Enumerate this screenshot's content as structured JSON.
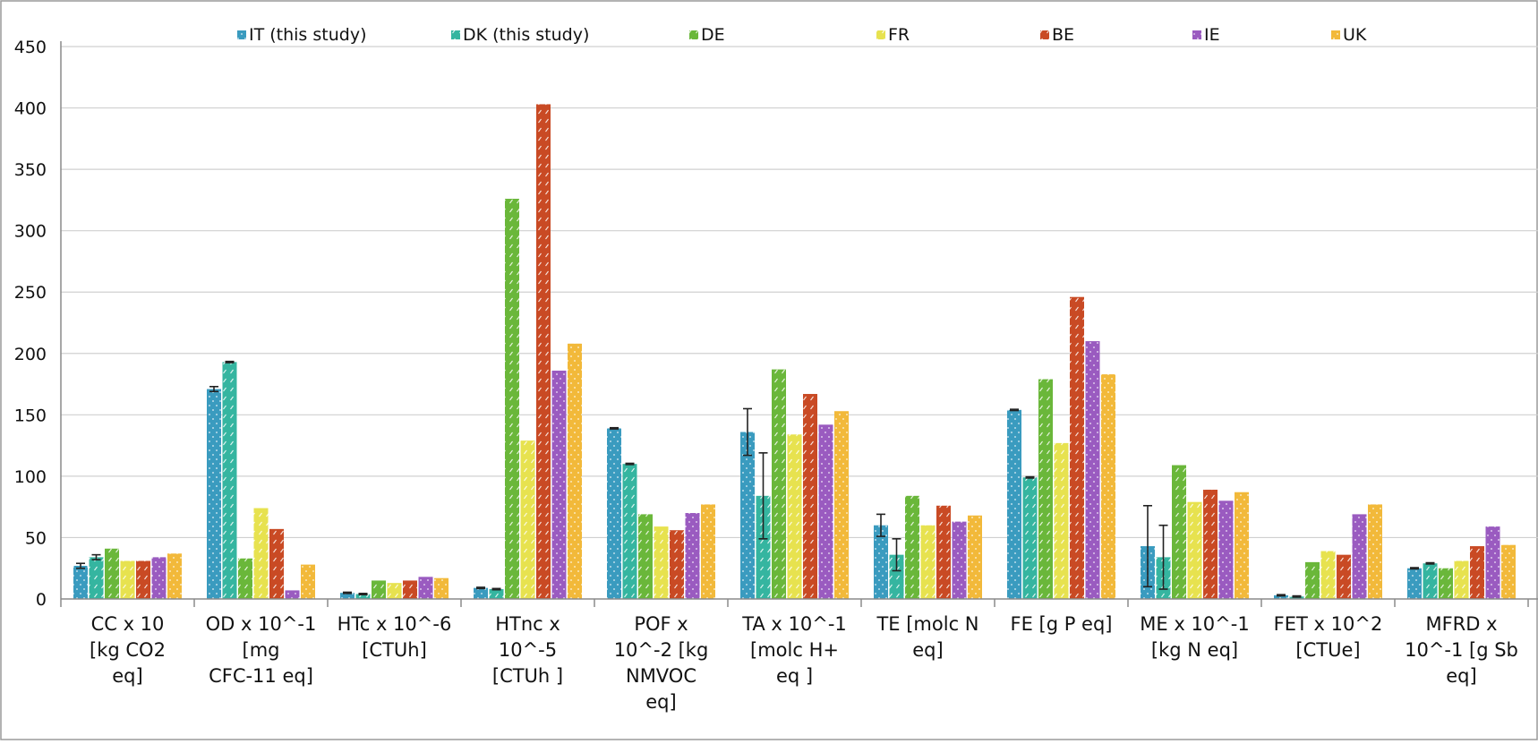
{
  "chart_data": {
    "type": "bar",
    "title": "",
    "xlabel": "",
    "ylabel": "",
    "ylim": [
      0,
      450
    ],
    "yticks": [
      0,
      50,
      100,
      150,
      200,
      250,
      300,
      350,
      400,
      450
    ],
    "grid": "horizontal",
    "legend_position": "top",
    "category_labels": [
      [
        "CC  x 10",
        "[kg CO2",
        "eq]"
      ],
      [
        "OD x 10^-1",
        "[mg",
        "CFC-11 eq]"
      ],
      [
        "HTc x 10^-6",
        "[CTUh]"
      ],
      [
        "HTnc x",
        "10^-5",
        "[CTUh ]"
      ],
      [
        "POF x",
        "10^-2 [kg",
        "NMVOC",
        "eq]"
      ],
      [
        "TA x 10^-1",
        "[molc H+",
        "eq ]"
      ],
      [
        "TE [molc N",
        "eq]"
      ],
      [
        "FE [g   P eq]"
      ],
      [
        "ME x 10^-1",
        "[kg N eq]"
      ],
      [
        "FET x 10^2",
        "[CTUe]"
      ],
      [
        "MFRD x",
        "10^-1 [g Sb",
        "eq]"
      ]
    ],
    "series": [
      {
        "name": "IT (this study)",
        "color": "#3a9bbf",
        "pattern": "dots",
        "values": [
          27,
          171,
          5,
          9,
          139,
          136,
          60,
          154,
          43,
          3,
          25
        ],
        "errors": [
          2,
          2,
          0.5,
          0.5,
          0.5,
          19,
          9,
          0.5,
          33,
          0.5,
          0.5
        ]
      },
      {
        "name": "DK (this study)",
        "color": "#35b5a0",
        "pattern": "dashes",
        "values": [
          34,
          193,
          4,
          8,
          110,
          84,
          36,
          99,
          34,
          2,
          29
        ],
        "errors": [
          2,
          0.5,
          0.5,
          0.5,
          0.5,
          35,
          13,
          0.5,
          26,
          0.5,
          0.5
        ]
      },
      {
        "name": "DE",
        "color": "#6ab73a",
        "pattern": "dashes",
        "values": [
          41,
          33,
          15,
          326,
          69,
          187,
          84,
          179,
          109,
          30,
          25
        ]
      },
      {
        "name": "FR",
        "color": "#e7e24f",
        "pattern": "dashes",
        "values": [
          31,
          74,
          13,
          129,
          59,
          134,
          60,
          127,
          79,
          39,
          31
        ]
      },
      {
        "name": "BE",
        "color": "#c94a24",
        "pattern": "dashes",
        "values": [
          31,
          57,
          15,
          403,
          56,
          167,
          76,
          246,
          89,
          36,
          43
        ]
      },
      {
        "name": "IE",
        "color": "#9a5bc0",
        "pattern": "dots",
        "values": [
          34,
          7,
          18,
          186,
          70,
          142,
          63,
          210,
          80,
          69,
          59
        ]
      },
      {
        "name": "UK",
        "color": "#f2b93a",
        "pattern": "dots",
        "values": [
          37,
          28,
          17,
          208,
          77,
          153,
          68,
          183,
          87,
          77,
          44
        ]
      }
    ]
  }
}
